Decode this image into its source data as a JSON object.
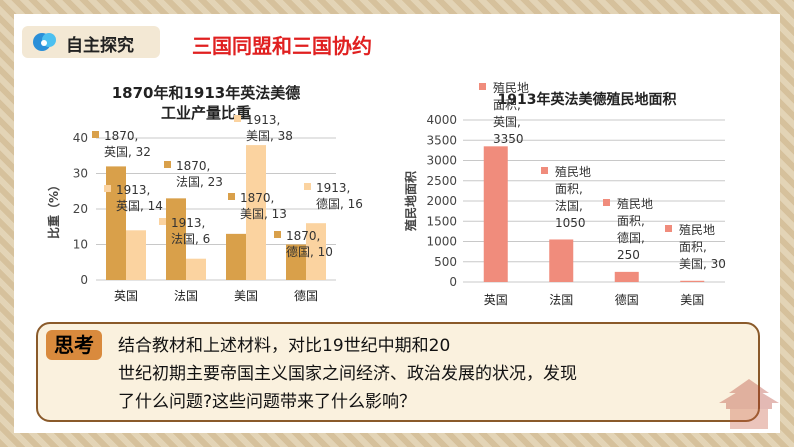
{
  "header": {
    "badge": "自主探究",
    "title": "三国同盟和三国协约"
  },
  "think": {
    "tag": "思考",
    "lines": [
      "结合教材和上述材料，对比19世纪中期和20",
      "世纪初期主要帝国主义国家之间经济、政治发展的状况，发现",
      "了什么问题?这些问题带来了什么影响？"
    ]
  },
  "chart_data": [
    {
      "type": "bar",
      "title_lines": [
        "1870年和1913年英法美德",
        "工业产量比重"
      ],
      "ylabel": "比重（%）",
      "categories": [
        "英国",
        "法国",
        "美国",
        "德国"
      ],
      "ylim": [
        0,
        40
      ],
      "yticks": [
        0,
        10,
        20,
        30,
        40
      ],
      "grid": true,
      "series": [
        {
          "name": "1870",
          "values": [
            32,
            23,
            13,
            10
          ],
          "color": "#d9a04a"
        },
        {
          "name": "1913",
          "values": [
            14,
            6,
            38,
            16
          ],
          "color": "#fbd3a0"
        }
      ],
      "data_labels": [
        [
          "1870,",
          "英国, 32"
        ],
        [
          "1913,",
          "英国, 14"
        ],
        [
          "1870,",
          "法国, 23"
        ],
        [
          "1913,",
          "法国, 6"
        ],
        [
          "1870,",
          "美国, 13"
        ],
        [
          "1913,",
          "美国, 38"
        ],
        [
          "1870,",
          "德国, 10"
        ],
        [
          "1913,",
          "德国, 16"
        ]
      ]
    },
    {
      "type": "bar",
      "title": "1913年英法美德殖民地面积",
      "ylabel": "殖民地面积",
      "categories": [
        "英国",
        "法国",
        "德国",
        "美国"
      ],
      "values": [
        3350,
        1050,
        250,
        30
      ],
      "color": "#f08c7c",
      "ylim": [
        0,
        4000
      ],
      "yticks": [
        0,
        500,
        1000,
        1500,
        2000,
        2500,
        3000,
        3500,
        4000
      ],
      "grid": true,
      "data_labels": [
        [
          "殖民地",
          "面积,",
          "英国,",
          "3350"
        ],
        [
          "殖民地",
          "面积,",
          "法国,",
          "1050"
        ],
        [
          "殖民地",
          "面积,",
          "德国,",
          "250"
        ],
        [
          "殖民地",
          "面积,",
          "美国, 30"
        ]
      ]
    }
  ]
}
